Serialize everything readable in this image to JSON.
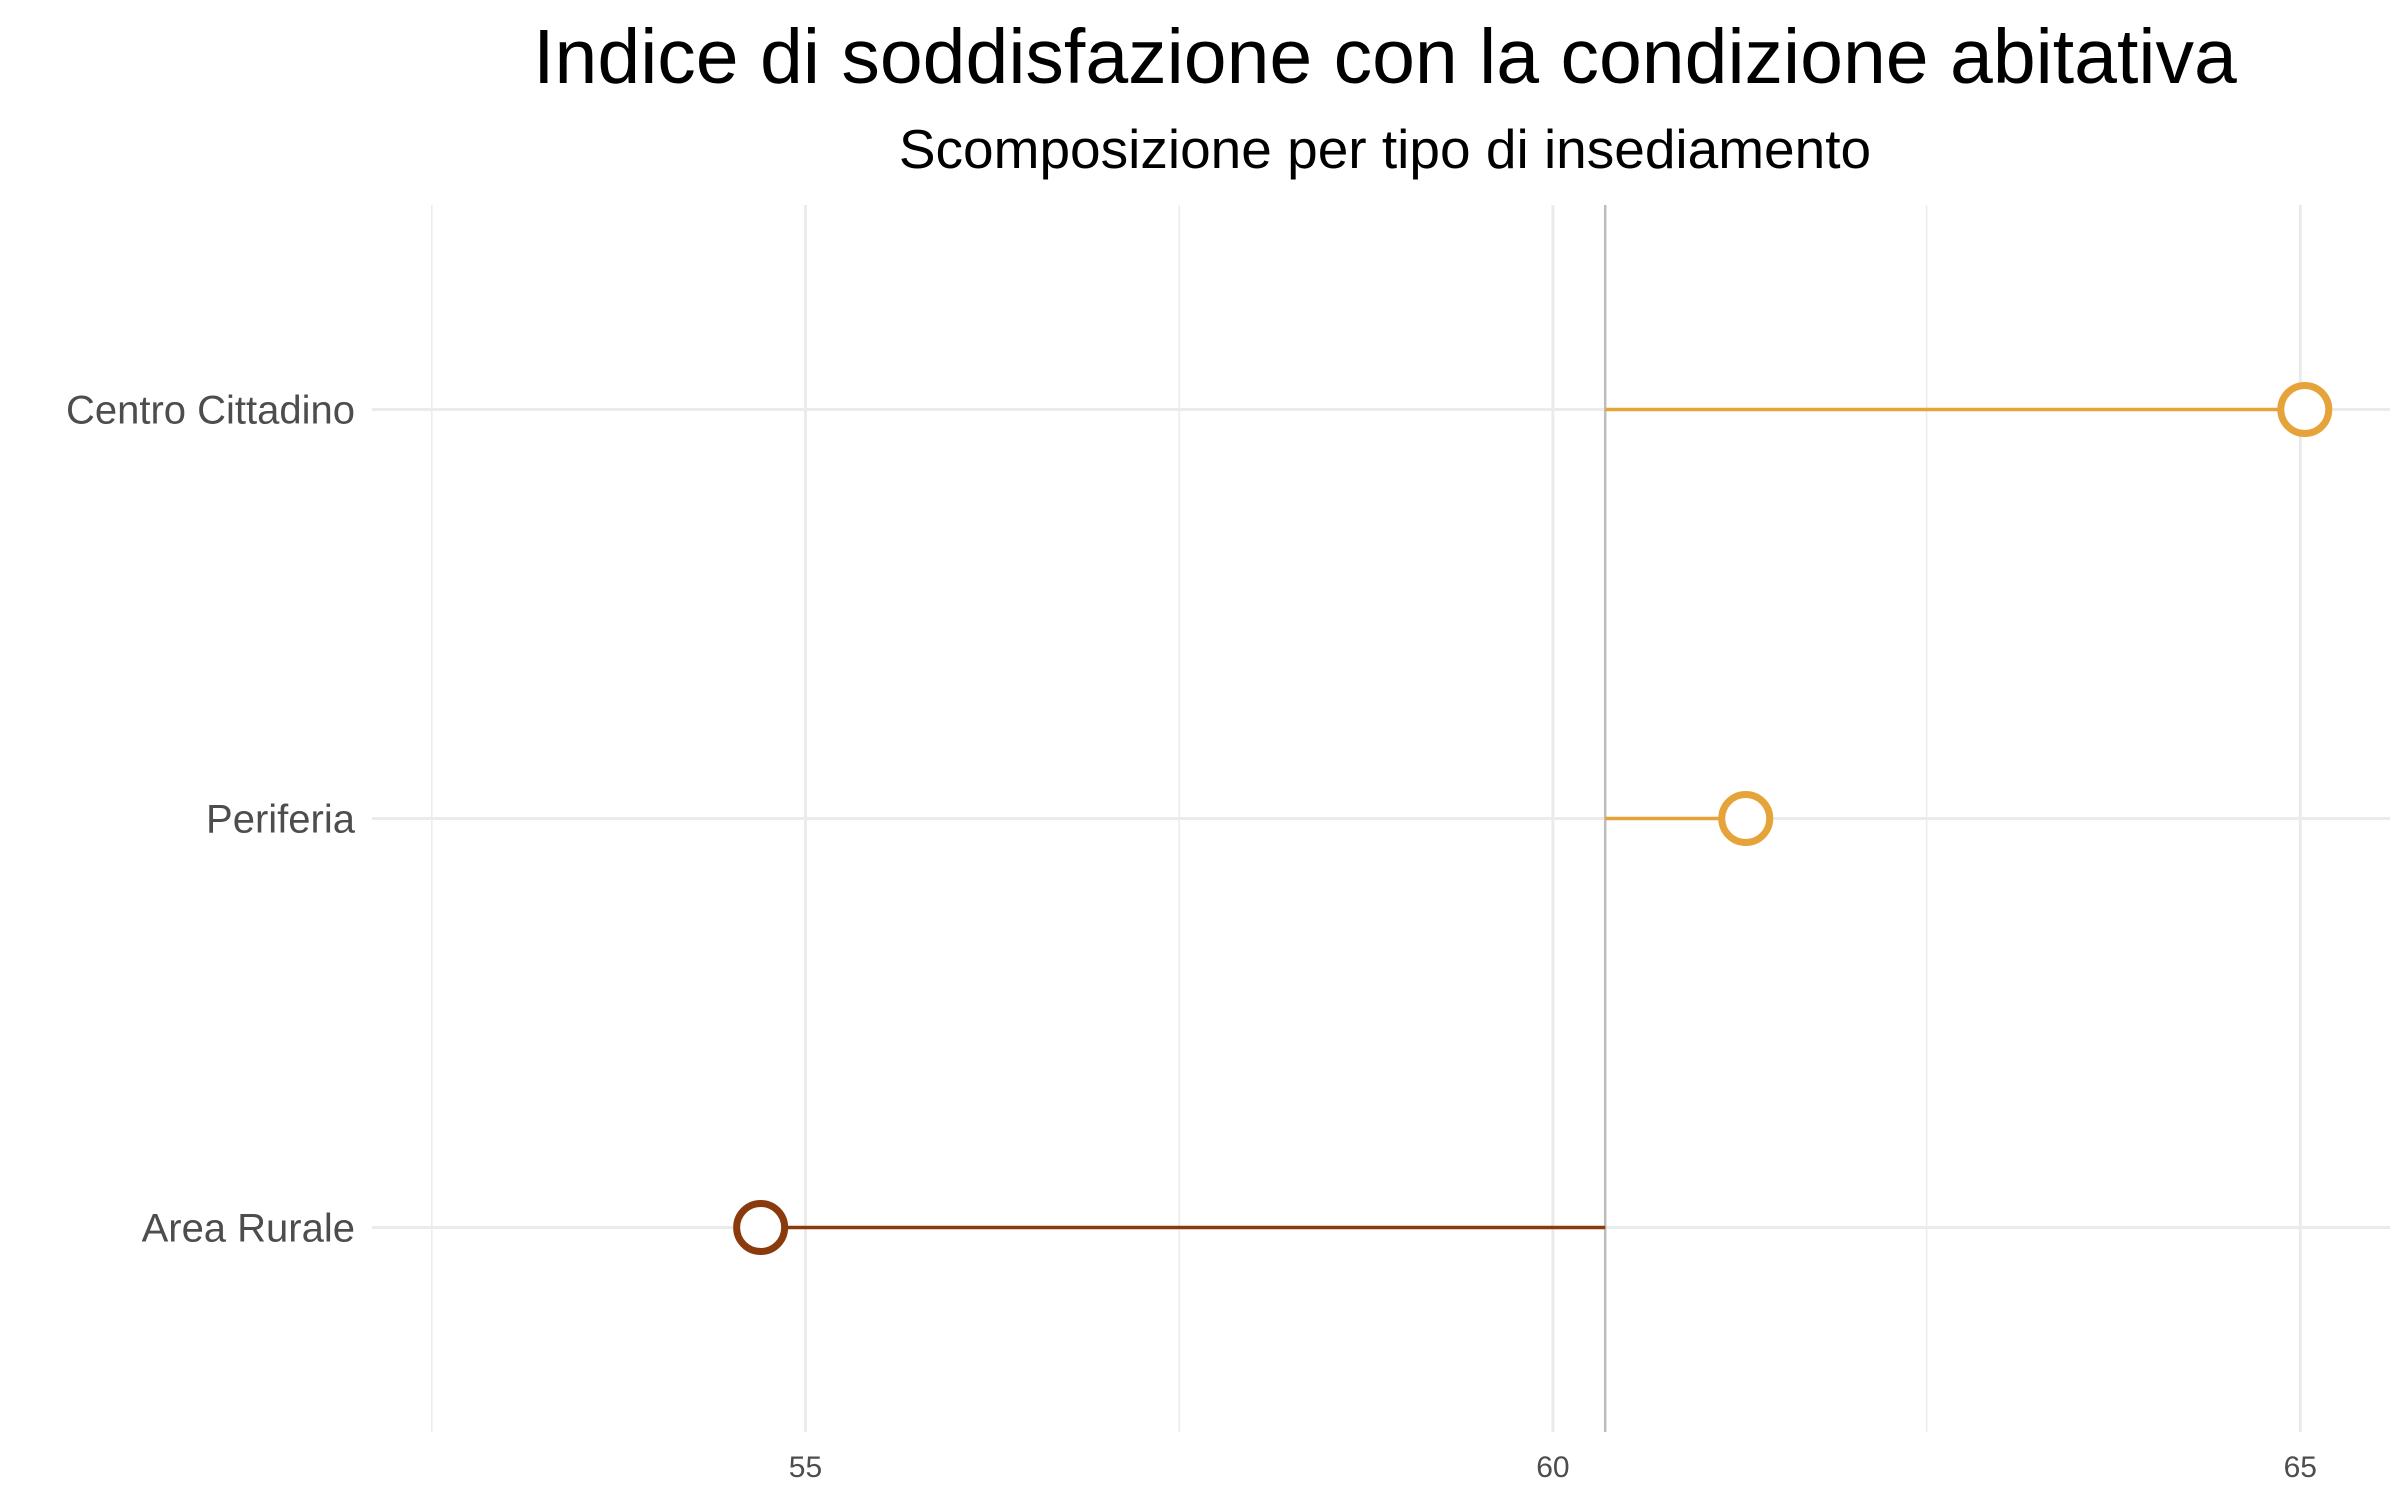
{
  "chart_data": {
    "type": "lollipop",
    "title": "Indice di soddisfazione con la condizione abitativa",
    "subtitle": "Scomposizione per tipo di insediamento",
    "xlabel": "",
    "ylabel": "",
    "xlim": [
      52.1,
      65.6
    ],
    "x_ticks": [
      55,
      60,
      65
    ],
    "x_tick_labels": [
      "55",
      "60",
      "65"
    ],
    "reference_value": 60.35,
    "grid": true,
    "categories": [
      "Centro Cittadino",
      "Periferia",
      "Area Rurale"
    ],
    "values": [
      65.03,
      61.29,
      54.7
    ],
    "colors": [
      "#e5a33a",
      "#e5a33a",
      "#8b3a0e"
    ],
    "reference_line_color": "#bdbdbd",
    "grid_color": "#ebebeb"
  }
}
